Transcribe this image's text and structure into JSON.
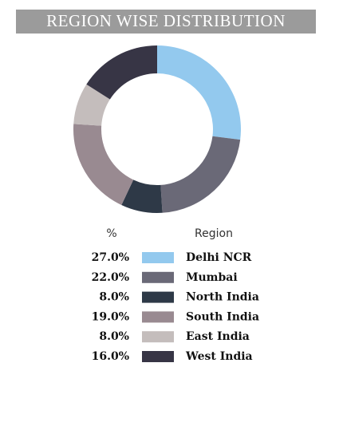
{
  "chart_data": {
    "type": "donut",
    "title": "REGION WISE DISTRIBUTION",
    "value_header": "%",
    "category_header": "Region",
    "categories": [
      "Delhi NCR",
      "Mumbai",
      "North India",
      "South India",
      "East India",
      "West India"
    ],
    "values": [
      27,
      22,
      8,
      19,
      8,
      16
    ],
    "value_labels": [
      "27.0%",
      "22.0%",
      "8.0%",
      "19.0%",
      "8.0%",
      "16.0%"
    ],
    "colors": [
      "#93c9ee",
      "#6a6977",
      "#2e3947",
      "#998a91",
      "#c4bdbc",
      "#373545"
    ]
  }
}
